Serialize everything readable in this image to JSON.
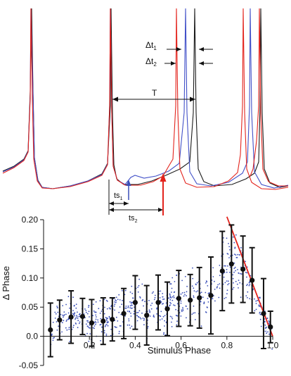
{
  "figure": {
    "background": "#ffffff",
    "trace_colors": {
      "black": "#1a1a1a",
      "red": "#e3231c",
      "blue": "#4150c8"
    },
    "arrow_colors": {
      "ts1": "#3a4fb8",
      "ts2": "#e3231c"
    }
  },
  "traces_panel": {
    "annotations": {
      "dt1": {
        "base": "Δt",
        "sub": "1"
      },
      "dt2": {
        "base": "Δt",
        "sub": "2"
      },
      "T": {
        "base": "T",
        "sub": ""
      },
      "ts1": {
        "base": "ts",
        "sub": "1"
      },
      "ts2": {
        "base": "ts",
        "sub": "2"
      }
    }
  },
  "chart_data": {
    "type": "scatter",
    "title": "",
    "xlabel": "Stimulus Phase",
    "ylabel": "Δ Phase",
    "xlim": [
      0,
      1.0
    ],
    "ylim": [
      -0.05,
      0.2
    ],
    "xticks": [
      0.2,
      0.4,
      0.6,
      0.8,
      1.0
    ],
    "xtick_labels": [
      "0.2",
      "0.4",
      "0.6",
      "0.8",
      "1.0"
    ],
    "yticks": [
      -0.05,
      0.0,
      0.05,
      0.1,
      0.15,
      0.2
    ],
    "ytick_labels": [
      "-0.05",
      "0.0",
      "0.05",
      "0.10",
      "0.15",
      "0.20"
    ],
    "grid": false,
    "means": {
      "marker_color": "#111111",
      "x": [
        0.03,
        0.07,
        0.12,
        0.17,
        0.21,
        0.26,
        0.3,
        0.35,
        0.4,
        0.45,
        0.5,
        0.54,
        0.59,
        0.64,
        0.68,
        0.73,
        0.78,
        0.82,
        0.87,
        0.91,
        0.96,
        0.99
      ],
      "y": [
        0.011,
        0.028,
        0.033,
        0.034,
        0.023,
        0.026,
        0.029,
        0.039,
        0.058,
        0.036,
        0.058,
        0.047,
        0.065,
        0.062,
        0.066,
        0.07,
        0.112,
        0.124,
        0.115,
        0.096,
        0.039,
        0.016
      ],
      "err": [
        0.046,
        0.034,
        0.045,
        0.031,
        0.04,
        0.04,
        0.037,
        0.043,
        0.046,
        0.051,
        0.047,
        0.046,
        0.048,
        0.044,
        0.052,
        0.066,
        0.068,
        0.067,
        0.057,
        0.056,
        0.06,
        0.027
      ]
    },
    "boundary_line": {
      "color": "#e3231c",
      "x": [
        0.8,
        1.0
      ],
      "y": [
        0.205,
        0.0
      ]
    },
    "raw_points": {
      "color": "#3a4fb8",
      "count": 700,
      "x_range": [
        0.03,
        1.0
      ]
    }
  }
}
